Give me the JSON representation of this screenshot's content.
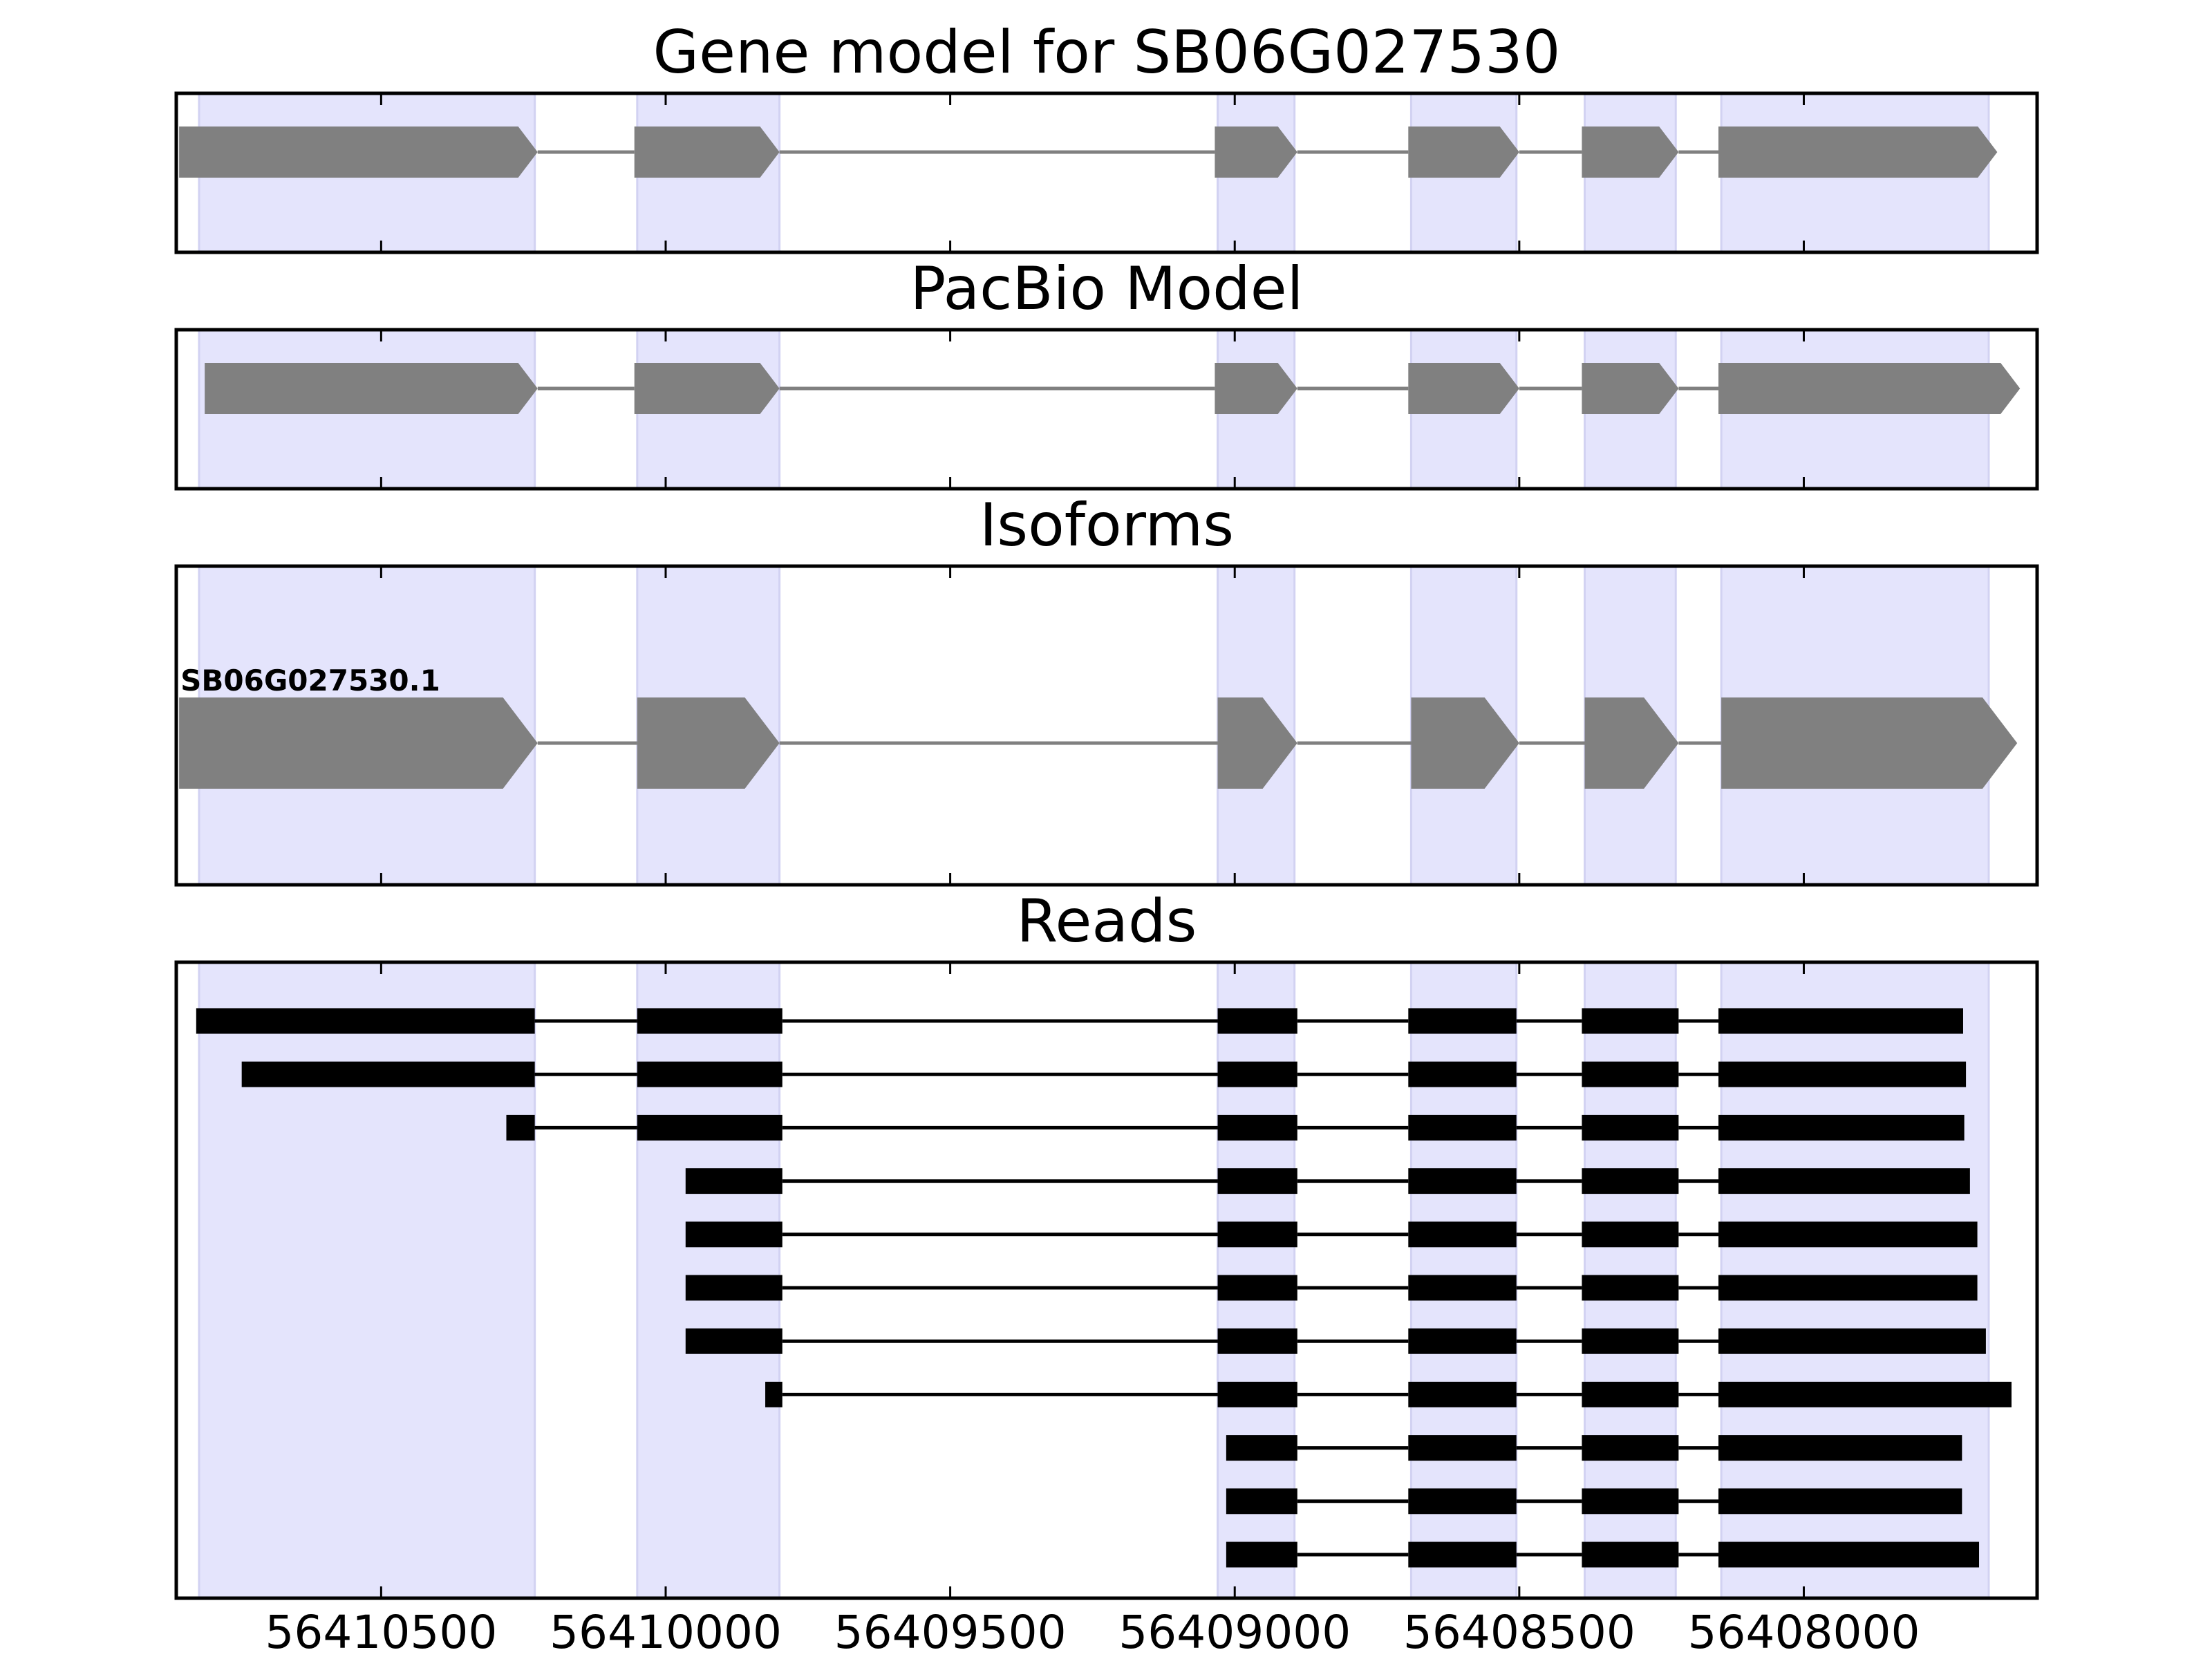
{
  "chart_data": {
    "type": "gene-structure",
    "x_axis": {
      "range": [
        56410860,
        56407590
      ],
      "ticks": [
        56410500,
        56410000,
        56409500,
        56409000,
        56408500,
        56408000
      ],
      "tick_labels": [
        "56410500",
        "56410000",
        "56409500",
        "56409000",
        "56408500",
        "56408000"
      ]
    },
    "highlight_regions": [
      [
        56410820,
        56410230
      ],
      [
        56410050,
        56409800
      ],
      [
        56409030,
        56408895
      ],
      [
        56408690,
        56408505
      ],
      [
        56408385,
        56408225
      ],
      [
        56408145,
        56407675
      ]
    ],
    "highlight_color": "#e4e4fc",
    "feature_color": "#808080",
    "read_color": "#000000",
    "panels": [
      {
        "title": "Gene model for SB06G027530",
        "kind": "model",
        "exons": [
          [
            56410855,
            56410225
          ],
          [
            56410055,
            56409800
          ],
          [
            56409035,
            56408890
          ],
          [
            56408695,
            56408500
          ],
          [
            56408390,
            56408220
          ],
          [
            56408150,
            56407660
          ]
        ]
      },
      {
        "title": "PacBio Model",
        "kind": "model",
        "exons": [
          [
            56410810,
            56410225
          ],
          [
            56410055,
            56409800
          ],
          [
            56409035,
            56408890
          ],
          [
            56408695,
            56408500
          ],
          [
            56408390,
            56408220
          ],
          [
            56408150,
            56407620
          ]
        ]
      },
      {
        "title": "Isoforms",
        "kind": "isoforms",
        "isoforms": [
          {
            "name": "SB06G027530.1",
            "exons": [
              [
                56410855,
                56410225
              ],
              [
                56410050,
                56409800
              ],
              [
                56409030,
                56408890
              ],
              [
                56408690,
                56408500
              ],
              [
                56408385,
                56408220
              ],
              [
                56408145,
                56407625
              ]
            ]
          }
        ]
      },
      {
        "title": "Reads",
        "kind": "reads",
        "reads": [
          [
            [
              56410825,
              56410230
            ],
            [
              56410050,
              56409795
            ],
            [
              56409030,
              56408890
            ],
            [
              56408695,
              56408505
            ],
            [
              56408390,
              56408220
            ],
            [
              56408150,
              56407720
            ]
          ],
          [
            [
              56410745,
              56410230
            ],
            [
              56410050,
              56409795
            ],
            [
              56409030,
              56408890
            ],
            [
              56408695,
              56408505
            ],
            [
              56408390,
              56408220
            ],
            [
              56408150,
              56407715
            ]
          ],
          [
            [
              56410280,
              56410230
            ],
            [
              56410050,
              56409795
            ],
            [
              56409030,
              56408890
            ],
            [
              56408695,
              56408505
            ],
            [
              56408390,
              56408220
            ],
            [
              56408150,
              56407718
            ]
          ],
          [
            [
              56409965,
              56409795
            ],
            [
              56409030,
              56408890
            ],
            [
              56408695,
              56408505
            ],
            [
              56408390,
              56408220
            ],
            [
              56408150,
              56407708
            ]
          ],
          [
            [
              56409965,
              56409795
            ],
            [
              56409030,
              56408890
            ],
            [
              56408695,
              56408505
            ],
            [
              56408390,
              56408220
            ],
            [
              56408150,
              56407695
            ]
          ],
          [
            [
              56409965,
              56409795
            ],
            [
              56409030,
              56408890
            ],
            [
              56408695,
              56408505
            ],
            [
              56408390,
              56408220
            ],
            [
              56408150,
              56407695
            ]
          ],
          [
            [
              56409965,
              56409795
            ],
            [
              56409030,
              56408890
            ],
            [
              56408695,
              56408505
            ],
            [
              56408390,
              56408220
            ],
            [
              56408150,
              56407680
            ]
          ],
          [
            [
              56409825,
              56409795
            ],
            [
              56409030,
              56408890
            ],
            [
              56408695,
              56408505
            ],
            [
              56408390,
              56408220
            ],
            [
              56408150,
              56407635
            ]
          ],
          [
            [
              56409015,
              56408890
            ],
            [
              56408695,
              56408505
            ],
            [
              56408390,
              56408220
            ],
            [
              56408150,
              56407722
            ]
          ],
          [
            [
              56409015,
              56408890
            ],
            [
              56408695,
              56408505
            ],
            [
              56408390,
              56408220
            ],
            [
              56408150,
              56407722
            ]
          ],
          [
            [
              56409015,
              56408890
            ],
            [
              56408695,
              56408505
            ],
            [
              56408390,
              56408220
            ],
            [
              56408150,
              56407692
            ]
          ]
        ]
      }
    ]
  }
}
